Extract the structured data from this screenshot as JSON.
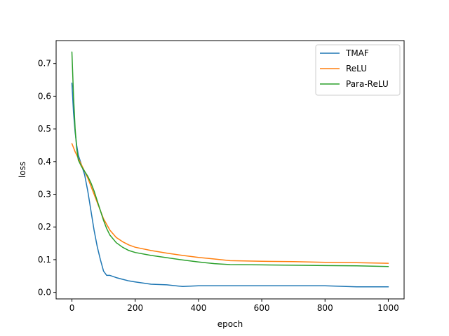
{
  "chart_data": {
    "type": "line",
    "title": "",
    "xlabel": "epoch",
    "ylabel": "loss",
    "xlim": [
      -50,
      1050
    ],
    "ylim": [
      -0.02,
      0.77
    ],
    "xticks": [
      0,
      200,
      400,
      600,
      800,
      1000
    ],
    "xtick_labels": [
      "0",
      "200",
      "400",
      "600",
      "800",
      "1000"
    ],
    "yticks": [
      0.0,
      0.1,
      0.2,
      0.3,
      0.4,
      0.5,
      0.6,
      0.7
    ],
    "ytick_labels": [
      "0.0",
      "0.1",
      "0.2",
      "0.3",
      "0.4",
      "0.5",
      "0.6",
      "0.7"
    ],
    "grid": false,
    "legend_position": "top-right",
    "series": [
      {
        "name": "TMAF",
        "color": "#1f77b4",
        "x": [
          0,
          5,
          10,
          15,
          20,
          30,
          40,
          50,
          60,
          70,
          80,
          90,
          100,
          110,
          120,
          140,
          160,
          180,
          200,
          250,
          300,
          350,
          400,
          450,
          500,
          600,
          700,
          800,
          900,
          1000
        ],
        "y": [
          0.64,
          0.55,
          0.49,
          0.45,
          0.42,
          0.39,
          0.36,
          0.31,
          0.25,
          0.19,
          0.14,
          0.1,
          0.065,
          0.052,
          0.052,
          0.045,
          0.04,
          0.035,
          0.032,
          0.025,
          0.023,
          0.018,
          0.02,
          0.02,
          0.02,
          0.02,
          0.02,
          0.02,
          0.017,
          0.017
        ]
      },
      {
        "name": "ReLU",
        "color": "#ff7f0e",
        "x": [
          0,
          10,
          20,
          30,
          40,
          50,
          60,
          70,
          80,
          90,
          100,
          120,
          140,
          160,
          180,
          200,
          250,
          300,
          350,
          400,
          450,
          500,
          600,
          700,
          800,
          900,
          1000
        ],
        "y": [
          0.455,
          0.43,
          0.41,
          0.39,
          0.37,
          0.35,
          0.325,
          0.3,
          0.275,
          0.25,
          0.225,
          0.19,
          0.168,
          0.155,
          0.145,
          0.138,
          0.128,
          0.12,
          0.113,
          0.107,
          0.102,
          0.097,
          0.095,
          0.094,
          0.092,
          0.091,
          0.089
        ]
      },
      {
        "name": "Para-ReLU",
        "color": "#2ca02c",
        "x": [
          0,
          5,
          10,
          15,
          20,
          30,
          40,
          50,
          60,
          70,
          80,
          90,
          100,
          110,
          120,
          140,
          160,
          180,
          200,
          250,
          300,
          350,
          400,
          450,
          500,
          600,
          700,
          800,
          900,
          1000
        ],
        "y": [
          0.735,
          0.6,
          0.5,
          0.44,
          0.405,
          0.385,
          0.37,
          0.355,
          0.335,
          0.31,
          0.28,
          0.25,
          0.22,
          0.195,
          0.175,
          0.152,
          0.138,
          0.128,
          0.122,
          0.113,
          0.106,
          0.099,
          0.093,
          0.088,
          0.085,
          0.084,
          0.083,
          0.082,
          0.081,
          0.079
        ]
      }
    ]
  }
}
